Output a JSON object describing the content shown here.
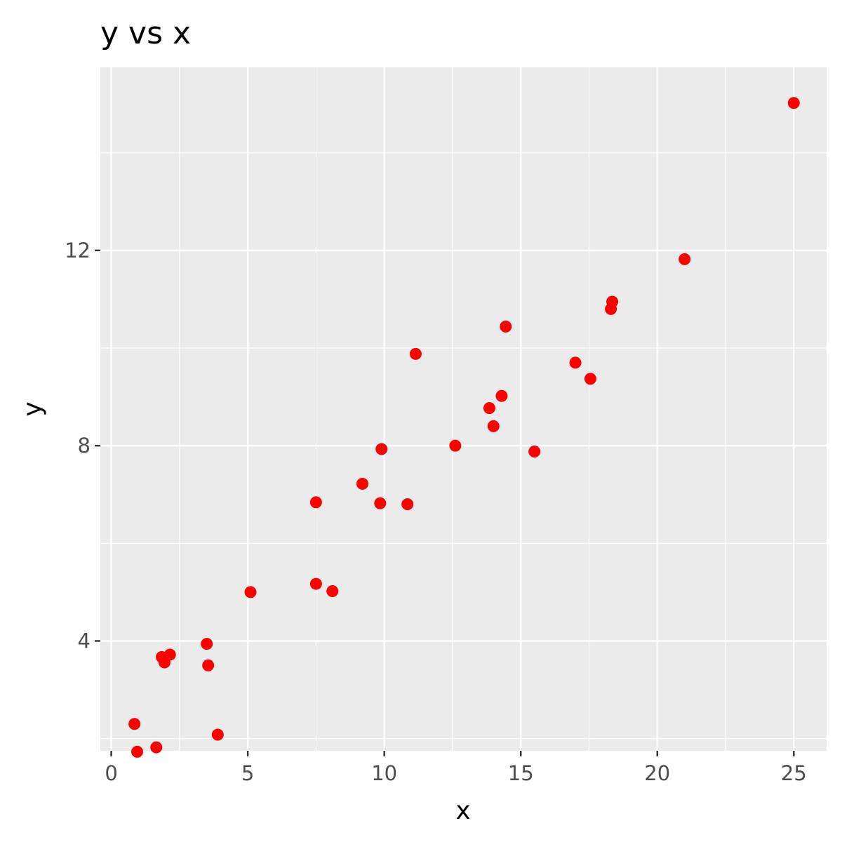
{
  "chart_data": {
    "type": "scatter",
    "title": "y vs x",
    "xlabel": "x",
    "ylabel": "y",
    "xlim": [
      -0.4,
      26.2
    ],
    "ylim": [
      1.75,
      15.75
    ],
    "x_ticks": [
      0,
      5,
      10,
      15,
      20,
      25
    ],
    "y_ticks": [
      4,
      8,
      12
    ],
    "x_minor_ticks": [
      2.5,
      7.5,
      12.5,
      17.5,
      22.5
    ],
    "y_minor_ticks": [
      2,
      6,
      10,
      14
    ],
    "grid": true,
    "point_color": "#ff0000",
    "panel_color": "#ebebeb",
    "grid_color": "#ffffff",
    "points": [
      {
        "x": 0.85,
        "y": 2.3
      },
      {
        "x": 0.95,
        "y": 1.73
      },
      {
        "x": 1.65,
        "y": 1.82
      },
      {
        "x": 1.85,
        "y": 3.67
      },
      {
        "x": 1.95,
        "y": 3.56
      },
      {
        "x": 2.15,
        "y": 3.72
      },
      {
        "x": 3.5,
        "y": 3.94
      },
      {
        "x": 3.55,
        "y": 3.5
      },
      {
        "x": 3.9,
        "y": 2.08
      },
      {
        "x": 5.1,
        "y": 5.0
      },
      {
        "x": 7.5,
        "y": 6.84
      },
      {
        "x": 7.5,
        "y": 5.17
      },
      {
        "x": 8.1,
        "y": 5.02
      },
      {
        "x": 9.2,
        "y": 7.22
      },
      {
        "x": 9.85,
        "y": 6.82
      },
      {
        "x": 9.9,
        "y": 7.93
      },
      {
        "x": 10.85,
        "y": 6.8
      },
      {
        "x": 11.15,
        "y": 9.88
      },
      {
        "x": 12.6,
        "y": 8.0
      },
      {
        "x": 13.85,
        "y": 8.77
      },
      {
        "x": 14.0,
        "y": 8.4
      },
      {
        "x": 14.3,
        "y": 9.02
      },
      {
        "x": 14.45,
        "y": 10.44
      },
      {
        "x": 15.5,
        "y": 7.88
      },
      {
        "x": 17.0,
        "y": 9.7
      },
      {
        "x": 17.55,
        "y": 9.37
      },
      {
        "x": 18.3,
        "y": 10.8
      },
      {
        "x": 18.35,
        "y": 10.95
      },
      {
        "x": 21.0,
        "y": 11.82
      },
      {
        "x": 25.0,
        "y": 15.02
      }
    ]
  }
}
